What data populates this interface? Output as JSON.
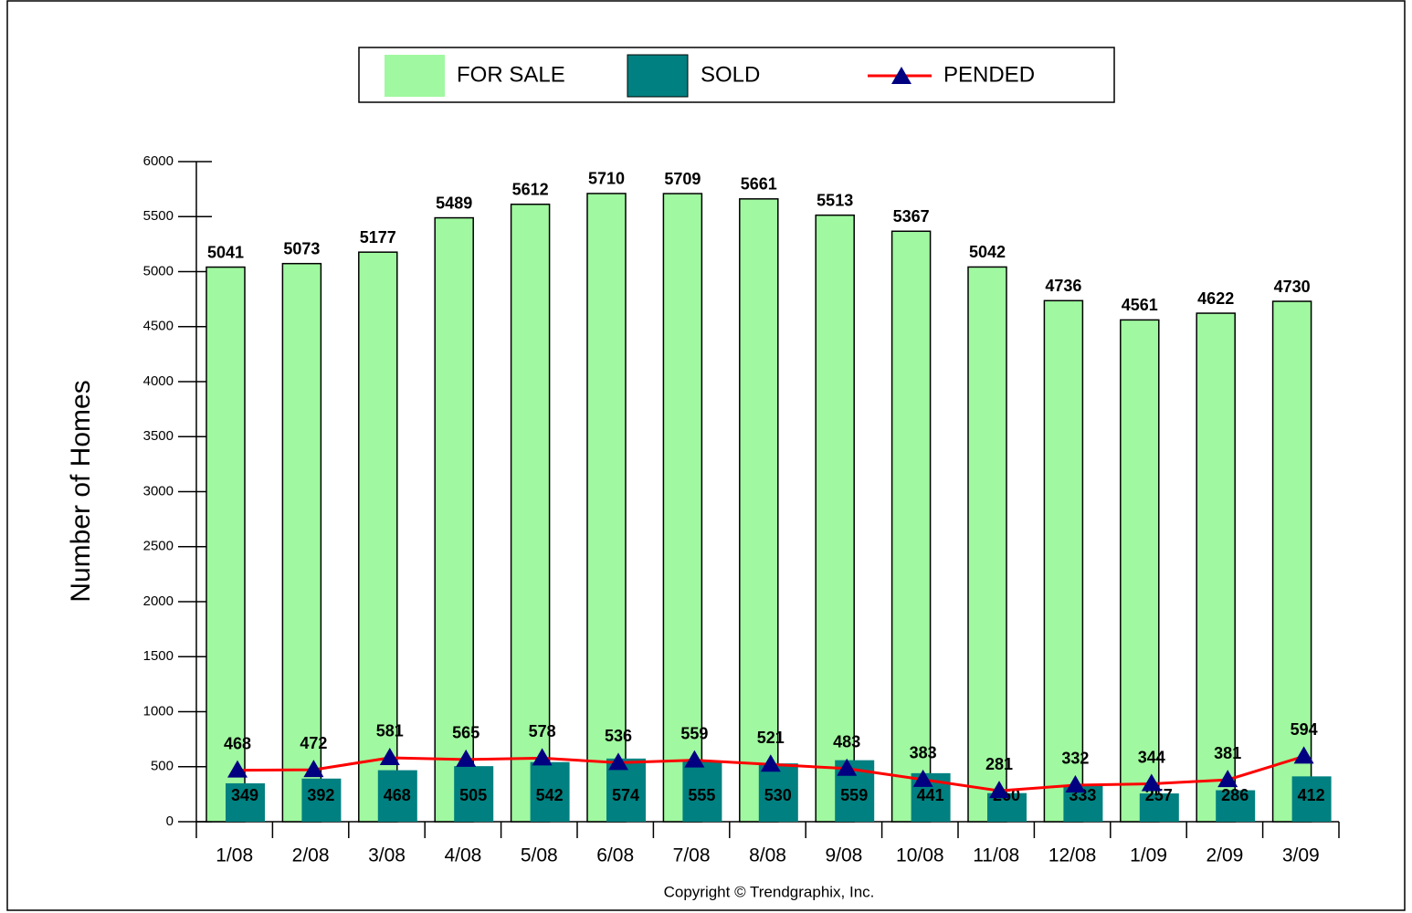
{
  "chart_data": {
    "type": "bar-line",
    "y_label": "Number of Homes",
    "footer": "Copyright © Trendgraphix, Inc.",
    "categories": [
      "1/08",
      "2/08",
      "3/08",
      "4/08",
      "5/08",
      "6/08",
      "7/08",
      "8/08",
      "9/08",
      "10/08",
      "11/08",
      "12/08",
      "1/09",
      "2/09",
      "3/09"
    ],
    "series": [
      {
        "name": "FOR SALE",
        "color": "#a0f8a0",
        "kind": "bar",
        "values": [
          5041,
          5073,
          5177,
          5489,
          5612,
          5710,
          5709,
          5661,
          5513,
          5367,
          5042,
          4736,
          4561,
          4622,
          4730
        ]
      },
      {
        "name": "SOLD",
        "color": "#008080",
        "kind": "bar",
        "values": [
          349,
          392,
          468,
          505,
          542,
          574,
          555,
          530,
          559,
          441,
          260,
          333,
          257,
          286,
          412
        ]
      },
      {
        "name": "PENDED",
        "color": "#ff0000",
        "marker_color": "#000080",
        "kind": "line",
        "values": [
          468,
          472,
          581,
          565,
          578,
          536,
          559,
          521,
          483,
          383,
          281,
          332,
          344,
          381,
          594
        ]
      }
    ],
    "ylim": [
      0,
      6000
    ],
    "yticks": [
      0,
      500,
      1000,
      1500,
      2000,
      2500,
      3000,
      3500,
      4000,
      4500,
      5000,
      5500,
      6000
    ]
  }
}
